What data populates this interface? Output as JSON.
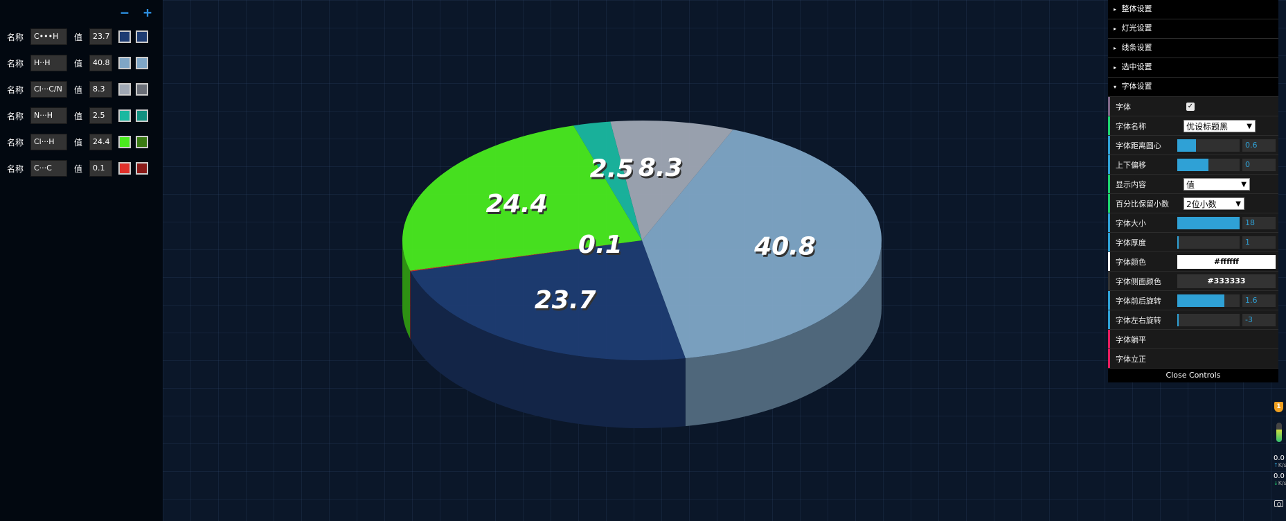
{
  "editor": {
    "minus_label": "−",
    "plus_label": "+",
    "name_label": "名称",
    "value_label": "值",
    "rows": [
      {
        "name": "C•••H",
        "value": "23.7",
        "color_top": "#1e3c72",
        "color_side": "#1e3c72"
      },
      {
        "name": "H··H",
        "value": "40.8",
        "color_top": "#7fa6c6",
        "color_side": "#7fa6c6"
      },
      {
        "name": "Cl···C/N",
        "value": "8.3",
        "color_top": "#a0a8b4",
        "color_side": "#6b6f78"
      },
      {
        "name": "N···H",
        "value": "2.5",
        "color_top": "#1ab8a0",
        "color_side": "#129080"
      },
      {
        "name": "Cl···H",
        "value": "24.4",
        "color_top": "#4aea1f",
        "color_side": "#3a7a14"
      },
      {
        "name": "C···C",
        "value": "0.1",
        "color_top": "#e0302a",
        "color_side": "#8a1a18"
      }
    ]
  },
  "chart_data": {
    "type": "pie",
    "title": "",
    "slices": [
      {
        "label": "C•••H",
        "value": 23.7,
        "color": "#1e3c72"
      },
      {
        "label": "H··H",
        "value": 40.8,
        "color": "#7fa6c6"
      },
      {
        "label": "Cl···C/N",
        "value": 8.3,
        "color": "#a0a8b4"
      },
      {
        "label": "N···H",
        "value": 2.5,
        "color": "#1ab8a0"
      },
      {
        "label": "Cl···H",
        "value": 24.4,
        "color": "#4aea1f"
      },
      {
        "label": "C···C",
        "value": 0.1,
        "color": "#e0302a"
      }
    ],
    "data_labels": [
      "23.7",
      "40.8",
      "8.3",
      "2.5",
      "24.4",
      "0.1"
    ],
    "label_color": "#ffffff",
    "label_side_color": "#333333"
  },
  "controls": {
    "folders": [
      {
        "label": "整体设置",
        "open": false
      },
      {
        "label": "灯光设置",
        "open": false
      },
      {
        "label": "线条设置",
        "open": false
      },
      {
        "label": "选中设置",
        "open": false
      },
      {
        "label": "字体设置",
        "open": true
      }
    ],
    "font": {
      "enable_label": "字体",
      "font_name_label": "字体名称",
      "font_name_value": "优设标题黑",
      "distance_label": "字体距离圆心",
      "distance_value": "0.6",
      "distance_fill": 0.3,
      "offset_label": "上下偏移",
      "offset_value": "0",
      "offset_fill": 0.5,
      "display_label": "显示内容",
      "display_value": "值",
      "decimals_label": "百分比保留小数",
      "decimals_value": "2位小数",
      "size_label": "字体大小",
      "size_value": "18",
      "size_fill": 1.0,
      "thickness_label": "字体厚度",
      "thickness_value": "1",
      "thickness_fill": 0.02,
      "color_label": "字体颜色",
      "color_value": "#ffffff",
      "side_color_label": "字体侧面颜色",
      "side_color_value": "#333333",
      "rot_fb_label": "字体前后旋转",
      "rot_fb_value": "1.6",
      "rot_fb_fill": 0.75,
      "rot_lr_label": "字体左右旋转",
      "rot_lr_value": "-3",
      "rot_lr_fill": 0.02,
      "lay_flat_label": "字体躺平",
      "stand_up_label": "字体立正"
    },
    "close_label": "Close Controls"
  },
  "side_widget": {
    "badge": "1",
    "up_value": "0.0",
    "up_unit": "K/s",
    "down_value": "0.0",
    "down_unit": "K/s"
  }
}
